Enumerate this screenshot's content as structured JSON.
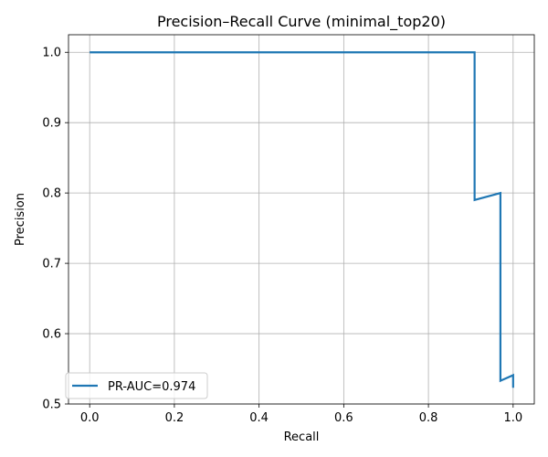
{
  "chart_data": {
    "type": "line",
    "title": "Precision–Recall Curve (minimal_top20)",
    "xlabel": "Recall",
    "ylabel": "Precision",
    "xlim": [
      -0.05,
      1.05
    ],
    "ylim": [
      0.5,
      1.025
    ],
    "xticks": [
      0.0,
      0.2,
      0.4,
      0.6,
      0.8,
      1.0
    ],
    "xtick_labels": [
      "0.0",
      "0.2",
      "0.4",
      "0.6",
      "0.8",
      "1.0"
    ],
    "yticks": [
      0.5,
      0.6,
      0.7,
      0.8,
      0.9,
      1.0
    ],
    "ytick_labels": [
      "0.5",
      "0.6",
      "0.7",
      "0.8",
      "0.9",
      "1.0"
    ],
    "grid": true,
    "legend_position": "lower-left",
    "series": [
      {
        "name": "PR-AUC=0.974",
        "color": "#1f77b4",
        "x": [
          0.0,
          0.909,
          0.909,
          0.97,
          0.97,
          1.0,
          1.0
        ],
        "y": [
          1.0,
          1.0,
          0.79,
          0.8,
          0.533,
          0.541,
          0.523
        ]
      }
    ]
  }
}
